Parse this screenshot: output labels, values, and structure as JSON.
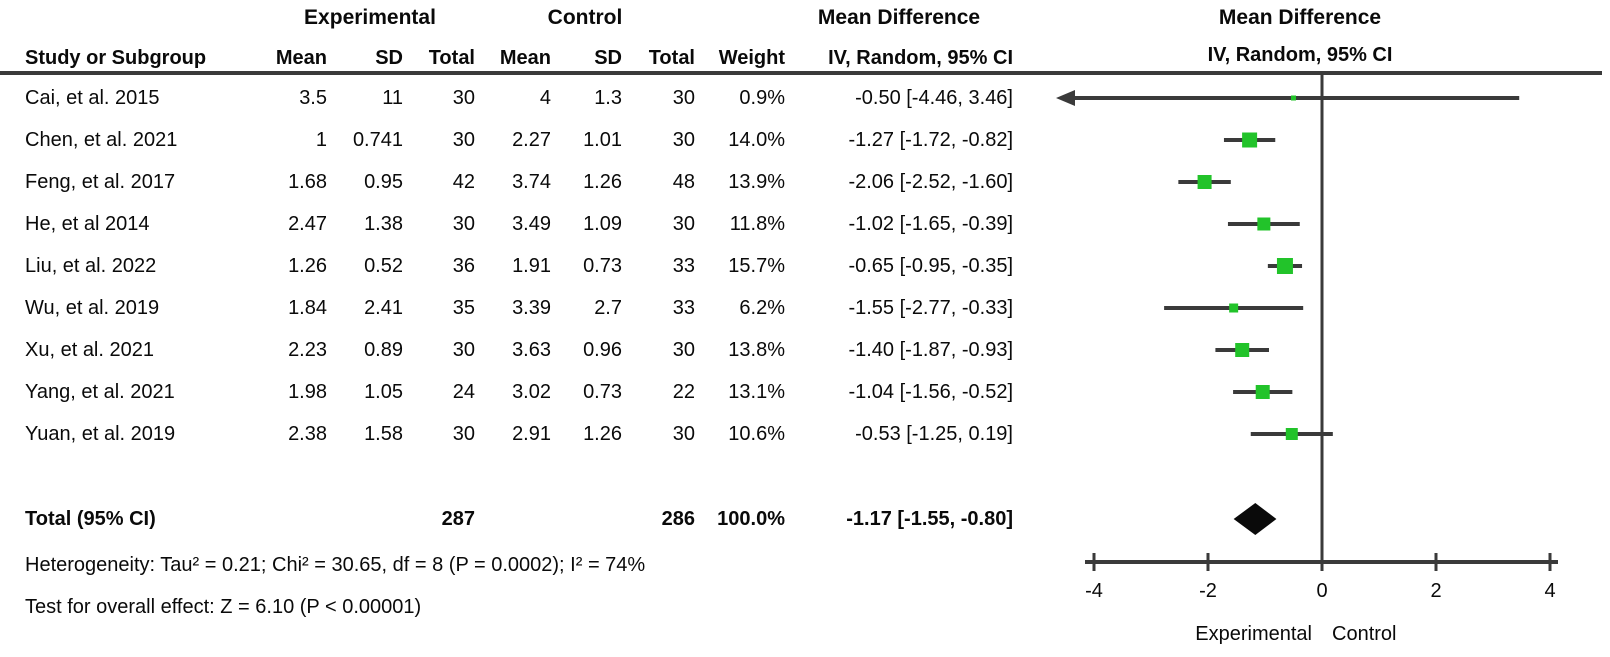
{
  "table": {
    "group_headers": {
      "experimental": "Experimental",
      "control": "Control",
      "mean_difference": "Mean Difference",
      "plot_mean_difference": "Mean Difference"
    },
    "columns": {
      "study": "Study or Subgroup",
      "exp_mean": "Mean",
      "exp_sd": "SD",
      "exp_total": "Total",
      "ctl_mean": "Mean",
      "ctl_sd": "SD",
      "ctl_total": "Total",
      "weight": "Weight",
      "ci": "IV, Random, 95% CI",
      "plot_ci": "IV, Random, 95% CI"
    },
    "rows": [
      {
        "study": "Cai, et al. 2015",
        "exp_mean": "3.5",
        "exp_sd": "11",
        "exp_total": "30",
        "ctl_mean": "4",
        "ctl_sd": "1.3",
        "ctl_total": "30",
        "weight": "0.9%",
        "ci": "-0.50 [-4.46, 3.46]"
      },
      {
        "study": "Chen, et al. 2021",
        "exp_mean": "1",
        "exp_sd": "0.741",
        "exp_total": "30",
        "ctl_mean": "2.27",
        "ctl_sd": "1.01",
        "ctl_total": "30",
        "weight": "14.0%",
        "ci": "-1.27 [-1.72, -0.82]"
      },
      {
        "study": "Feng, et al. 2017",
        "exp_mean": "1.68",
        "exp_sd": "0.95",
        "exp_total": "42",
        "ctl_mean": "3.74",
        "ctl_sd": "1.26",
        "ctl_total": "48",
        "weight": "13.9%",
        "ci": "-2.06 [-2.52, -1.60]"
      },
      {
        "study": "He, et al 2014",
        "exp_mean": "2.47",
        "exp_sd": "1.38",
        "exp_total": "30",
        "ctl_mean": "3.49",
        "ctl_sd": "1.09",
        "ctl_total": "30",
        "weight": "11.8%",
        "ci": "-1.02 [-1.65, -0.39]"
      },
      {
        "study": "Liu, et al. 2022",
        "exp_mean": "1.26",
        "exp_sd": "0.52",
        "exp_total": "36",
        "ctl_mean": "1.91",
        "ctl_sd": "0.73",
        "ctl_total": "33",
        "weight": "15.7%",
        "ci": "-0.65 [-0.95, -0.35]"
      },
      {
        "study": "Wu, et al. 2019",
        "exp_mean": "1.84",
        "exp_sd": "2.41",
        "exp_total": "35",
        "ctl_mean": "3.39",
        "ctl_sd": "2.7",
        "ctl_total": "33",
        "weight": "6.2%",
        "ci": "-1.55 [-2.77, -0.33]"
      },
      {
        "study": "Xu, et al. 2021",
        "exp_mean": "2.23",
        "exp_sd": "0.89",
        "exp_total": "30",
        "ctl_mean": "3.63",
        "ctl_sd": "0.96",
        "ctl_total": "30",
        "weight": "13.8%",
        "ci": "-1.40 [-1.87, -0.93]"
      },
      {
        "study": "Yang, et al. 2021",
        "exp_mean": "1.98",
        "exp_sd": "1.05",
        "exp_total": "24",
        "ctl_mean": "3.02",
        "ctl_sd": "0.73",
        "ctl_total": "22",
        "weight": "13.1%",
        "ci": "-1.04 [-1.56, -0.52]"
      },
      {
        "study": "Yuan, et al. 2019",
        "exp_mean": "2.38",
        "exp_sd": "1.58",
        "exp_total": "30",
        "ctl_mean": "2.91",
        "ctl_sd": "1.26",
        "ctl_total": "30",
        "weight": "10.6%",
        "ci": "-0.53 [-1.25, 0.19]"
      }
    ],
    "total_row": {
      "label": "Total (95% CI)",
      "exp_total": "287",
      "ctl_total": "286",
      "weight": "100.0%",
      "ci": "-1.17 [-1.55, -0.80]"
    },
    "heterogeneity": "Heterogeneity: Tau² = 0.21; Chi² = 30.65, df = 8 (P = 0.0002); I² = 74%",
    "overall_effect": "Test for overall effect: Z = 6.10 (P < 0.00001)"
  },
  "chart_data": {
    "type": "forest",
    "title": "Mean Difference — IV, Random, 95% CI",
    "xlim": [
      -4,
      4
    ],
    "ticks": [
      -4,
      -2,
      0,
      2,
      4
    ],
    "tick_labels": [
      "-4",
      "-2",
      "0",
      "2",
      "4"
    ],
    "axis_label_left": "Experimental",
    "axis_label_right": "Control",
    "studies": [
      {
        "name": "Cai, et al. 2015",
        "md": -0.5,
        "lo": -4.46,
        "hi": 3.46,
        "weight_pct": 0.9
      },
      {
        "name": "Chen, et al. 2021",
        "md": -1.27,
        "lo": -1.72,
        "hi": -0.82,
        "weight_pct": 14.0
      },
      {
        "name": "Feng, et al. 2017",
        "md": -2.06,
        "lo": -2.52,
        "hi": -1.6,
        "weight_pct": 13.9
      },
      {
        "name": "He, et al 2014",
        "md": -1.02,
        "lo": -1.65,
        "hi": -0.39,
        "weight_pct": 11.8
      },
      {
        "name": "Liu, et al. 2022",
        "md": -0.65,
        "lo": -0.95,
        "hi": -0.35,
        "weight_pct": 15.7
      },
      {
        "name": "Wu, et al. 2019",
        "md": -1.55,
        "lo": -2.77,
        "hi": -0.33,
        "weight_pct": 6.2
      },
      {
        "name": "Xu, et al. 2021",
        "md": -1.4,
        "lo": -1.87,
        "hi": -0.93,
        "weight_pct": 13.8
      },
      {
        "name": "Yang, et al. 2021",
        "md": -1.04,
        "lo": -1.56,
        "hi": -0.52,
        "weight_pct": 13.1
      },
      {
        "name": "Yuan, et al. 2019",
        "md": -0.53,
        "lo": -1.25,
        "hi": 0.19,
        "weight_pct": 10.6
      }
    ],
    "total": {
      "md": -1.17,
      "lo": -1.55,
      "hi": -0.8
    },
    "colors": {
      "marker_green": "#22c32a",
      "line_gray": "#3a3a3a",
      "diamond_black": "#0a0a0a",
      "text_black": "#0a0a0a"
    },
    "legend_position": "none",
    "grid": false
  }
}
